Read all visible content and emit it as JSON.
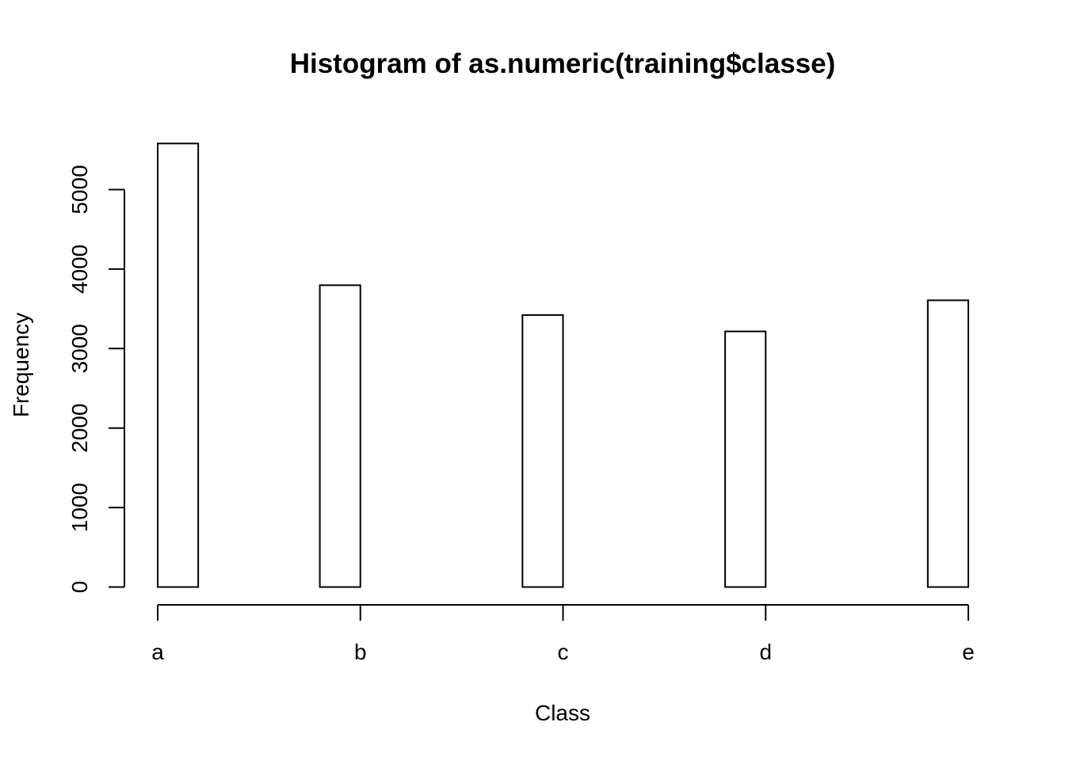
{
  "chart_data": {
    "type": "bar",
    "title": "Histogram of as.numeric(training$classe)",
    "xlabel": "Class",
    "ylabel": "Frequency",
    "x_tick_labels": [
      "a",
      "b",
      "c",
      "d",
      "e"
    ],
    "y_ticks": [
      0,
      1000,
      2000,
      3000,
      4000,
      5000
    ],
    "ylim": [
      0,
      5580
    ],
    "xlim": [
      1,
      5
    ],
    "bins": [
      {
        "from": 1.0,
        "to": 1.2,
        "value": 5580
      },
      {
        "from": 1.2,
        "to": 1.4,
        "value": 0
      },
      {
        "from": 1.4,
        "to": 1.6,
        "value": 0
      },
      {
        "from": 1.6,
        "to": 1.8,
        "value": 0
      },
      {
        "from": 1.8,
        "to": 2.0,
        "value": 3797
      },
      {
        "from": 2.0,
        "to": 2.2,
        "value": 0
      },
      {
        "from": 2.2,
        "to": 2.4,
        "value": 0
      },
      {
        "from": 2.4,
        "to": 2.6,
        "value": 0
      },
      {
        "from": 2.6,
        "to": 2.8,
        "value": 0
      },
      {
        "from": 2.8,
        "to": 3.0,
        "value": 3422
      },
      {
        "from": 3.0,
        "to": 3.2,
        "value": 0
      },
      {
        "from": 3.2,
        "to": 3.4,
        "value": 0
      },
      {
        "from": 3.4,
        "to": 3.6,
        "value": 0
      },
      {
        "from": 3.6,
        "to": 3.8,
        "value": 0
      },
      {
        "from": 3.8,
        "to": 4.0,
        "value": 3216
      },
      {
        "from": 4.0,
        "to": 4.2,
        "value": 0
      },
      {
        "from": 4.2,
        "to": 4.4,
        "value": 0
      },
      {
        "from": 4.4,
        "to": 4.6,
        "value": 0
      },
      {
        "from": 4.6,
        "to": 4.8,
        "value": 0
      },
      {
        "from": 4.8,
        "to": 5.0,
        "value": 3607
      }
    ],
    "bar_fill": "#ffffff",
    "bar_stroke": "#000000",
    "grid": false,
    "legend": "none"
  }
}
